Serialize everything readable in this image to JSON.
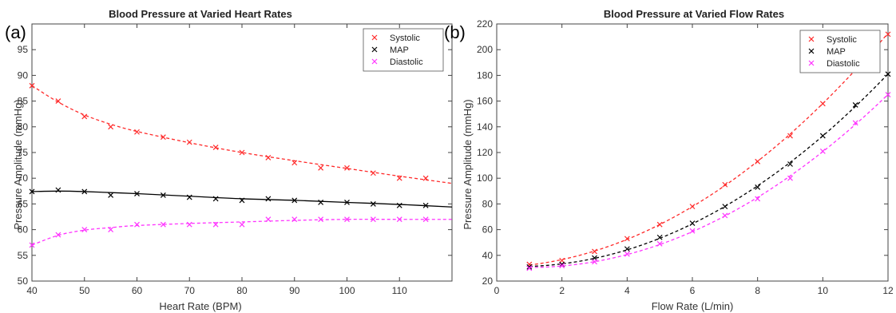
{
  "chart_data": [
    {
      "panel": "(a)",
      "type": "scatter",
      "title": "Blood Pressure at Varied Heart Rates",
      "xlabel": "Heart Rate (BPM)",
      "ylabel": "Pressure Amplitude (mmHg)",
      "xlim": [
        40,
        120
      ],
      "ylim": [
        50,
        100
      ],
      "xticks": [
        40,
        50,
        60,
        70,
        80,
        90,
        100,
        110
      ],
      "yticks": [
        50,
        55,
        60,
        65,
        70,
        75,
        80,
        85,
        90,
        95
      ],
      "grid": false,
      "legend_position": "top-right",
      "series": [
        {
          "name": "Systolic",
          "color": "#ff2a2a",
          "x": [
            40,
            45,
            50,
            55,
            60,
            65,
            70,
            75,
            80,
            85,
            90,
            95,
            100,
            105,
            110,
            115
          ],
          "values": [
            88,
            85,
            82,
            80,
            79,
            78,
            77,
            76,
            75,
            74,
            73,
            72,
            72,
            71,
            70,
            70
          ],
          "fit": {
            "style": "dashed",
            "x": [
              40,
              45,
              50,
              55,
              60,
              70,
              80,
              90,
              100,
              110,
              120
            ],
            "y": [
              88,
              84.8,
              82.3,
              80.5,
              79.1,
              76.9,
              75.0,
              73.4,
              71.9,
              70.4,
              69.0
            ]
          }
        },
        {
          "name": "MAP",
          "color": "#000000",
          "x": [
            40,
            45,
            50,
            55,
            60,
            65,
            70,
            75,
            80,
            85,
            90,
            95,
            100,
            105,
            110,
            115
          ],
          "values": [
            67.4,
            67.7,
            67.4,
            66.7,
            67,
            66.7,
            66.3,
            66,
            65.7,
            66,
            65.7,
            65.3,
            65.3,
            65,
            64.7,
            64.7
          ],
          "fit": {
            "style": "solid",
            "x": [
              40,
              45,
              50,
              60,
              70,
              80,
              90,
              100,
              110,
              120
            ],
            "y": [
              67.4,
              67.5,
              67.4,
              67.0,
              66.5,
              66.0,
              65.7,
              65.3,
              64.9,
              64.4
            ]
          }
        },
        {
          "name": "Diastolic",
          "color": "#ff33ff",
          "x": [
            40,
            45,
            50,
            55,
            60,
            65,
            70,
            75,
            80,
            85,
            90,
            95,
            100,
            105,
            110,
            115
          ],
          "values": [
            57,
            59,
            60,
            60,
            61,
            61,
            61,
            61,
            61,
            62,
            62,
            62,
            62,
            62,
            62,
            62
          ],
          "fit": {
            "style": "dashed",
            "x": [
              40,
              45,
              50,
              55,
              60,
              70,
              80,
              90,
              100,
              110,
              120
            ],
            "y": [
              57,
              58.9,
              59.9,
              60.4,
              60.8,
              61.2,
              61.5,
              61.8,
              62.0,
              62.0,
              62.0
            ]
          }
        }
      ]
    },
    {
      "panel": "(b)",
      "type": "scatter",
      "title": "Blood Pressure at Varied Flow Rates",
      "xlabel": "Flow Rate (L/min)",
      "ylabel": "Pressure Amplitude (mmHg)",
      "xlim": [
        0,
        12
      ],
      "ylim": [
        20,
        220
      ],
      "xticks": [
        0,
        2,
        4,
        6,
        8,
        10,
        12
      ],
      "yticks": [
        20,
        40,
        60,
        80,
        100,
        120,
        140,
        160,
        180,
        200,
        220
      ],
      "grid": false,
      "legend_position": "top-right",
      "series": [
        {
          "name": "Systolic",
          "color": "#ff2a2a",
          "x": [
            1,
            2,
            3,
            4,
            5,
            6,
            7,
            8,
            9,
            10,
            11,
            12
          ],
          "values": [
            33,
            36,
            43,
            53,
            64,
            78,
            95,
            113,
            133,
            158,
            186,
            212
          ],
          "fit": {
            "style": "dashed"
          }
        },
        {
          "name": "MAP",
          "color": "#000000",
          "x": [
            1,
            2,
            3,
            4,
            5,
            6,
            7,
            8,
            9,
            10,
            11,
            12
          ],
          "values": [
            31,
            33,
            38,
            45,
            54,
            65,
            78,
            93,
            111,
            133,
            157,
            181
          ],
          "fit": {
            "style": "dashed"
          }
        },
        {
          "name": "Diastolic",
          "color": "#ff33ff",
          "x": [
            1,
            2,
            3,
            4,
            5,
            6,
            7,
            8,
            9,
            10,
            11,
            12
          ],
          "values": [
            30,
            32,
            35,
            41,
            49,
            59,
            71,
            84,
            100,
            121,
            143,
            165
          ],
          "fit": {
            "style": "dashed"
          }
        }
      ]
    }
  ]
}
